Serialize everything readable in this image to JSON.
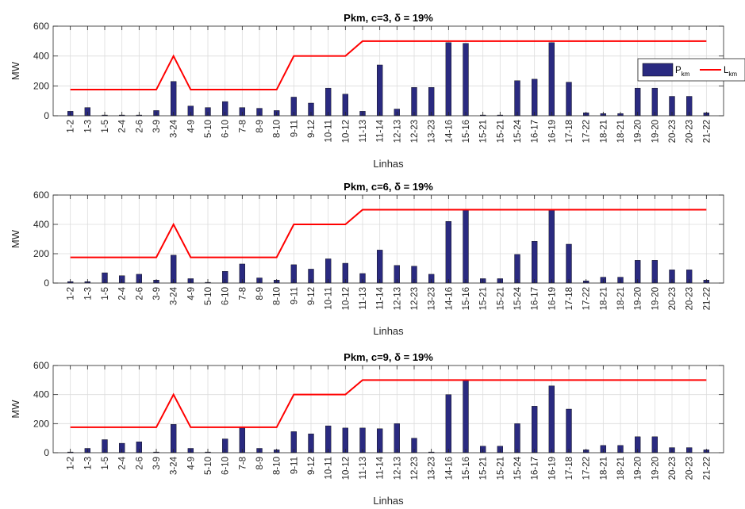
{
  "chart_data": [
    {
      "type": "bar",
      "title": "Pkm, c=3, δ = 19%",
      "xlabel": "Linhas",
      "ylabel": "MW",
      "ylim": [
        0,
        600
      ],
      "yticks": [
        0,
        200,
        400,
        600
      ],
      "grid": true,
      "legend": {
        "placement": "right",
        "shown": true
      },
      "categories": [
        "1-2",
        "1-3",
        "1-5",
        "2-4",
        "2-6",
        "3-9",
        "3-24",
        "4-9",
        "5-10",
        "6-10",
        "7-8",
        "8-9",
        "8-10",
        "9-11",
        "9-12",
        "10-11",
        "10-12",
        "11-13",
        "11-14",
        "12-13",
        "12-23",
        "13-23",
        "14-16",
        "15-16",
        "15-21",
        "15-21",
        "15-24",
        "16-17",
        "16-19",
        "17-18",
        "17-22",
        "18-21",
        "18-21",
        "19-20",
        "19-20",
        "20-23",
        "20-23",
        "21-22"
      ],
      "series": [
        {
          "name": "P_km",
          "kind": "bar",
          "color": "#2a2a80",
          "values": [
            30,
            55,
            5,
            5,
            5,
            35,
            230,
            65,
            55,
            95,
            55,
            50,
            35,
            125,
            85,
            185,
            145,
            30,
            340,
            45,
            190,
            190,
            490,
            485,
            5,
            5,
            235,
            245,
            490,
            225,
            20,
            15,
            15,
            185,
            185,
            130,
            130,
            20
          ]
        },
        {
          "name": "L_km",
          "kind": "line",
          "color": "#ff0000",
          "values": [
            175,
            175,
            175,
            175,
            175,
            175,
            400,
            175,
            175,
            175,
            175,
            175,
            175,
            400,
            400,
            400,
            400,
            500,
            500,
            500,
            500,
            500,
            500,
            500,
            500,
            500,
            500,
            500,
            500,
            500,
            500,
            500,
            500,
            500,
            500,
            500,
            500,
            500
          ]
        }
      ]
    },
    {
      "type": "bar",
      "title": "Pkm, c=6, δ = 19%",
      "xlabel": "Linhas",
      "ylabel": "MW",
      "ylim": [
        0,
        600
      ],
      "yticks": [
        0,
        200,
        400,
        600
      ],
      "grid": true,
      "legend": {
        "shown": false
      },
      "categories": [
        "1-2",
        "1-3",
        "1-5",
        "2-4",
        "2-6",
        "3-9",
        "3-24",
        "4-9",
        "5-10",
        "6-10",
        "7-8",
        "8-9",
        "8-10",
        "9-11",
        "9-12",
        "10-11",
        "10-12",
        "11-13",
        "11-14",
        "12-13",
        "12-23",
        "13-23",
        "14-16",
        "15-16",
        "15-21",
        "15-21",
        "15-24",
        "16-17",
        "16-19",
        "17-18",
        "17-22",
        "18-21",
        "18-21",
        "19-20",
        "19-20",
        "20-23",
        "20-23",
        "21-22"
      ],
      "series": [
        {
          "name": "P_km",
          "kind": "bar",
          "color": "#2a2a80",
          "values": [
            10,
            10,
            70,
            50,
            60,
            20,
            190,
            30,
            5,
            80,
            130,
            35,
            20,
            125,
            95,
            165,
            135,
            65,
            225,
            120,
            115,
            60,
            420,
            500,
            30,
            30,
            195,
            285,
            500,
            265,
            15,
            40,
            40,
            155,
            155,
            90,
            90,
            20
          ]
        },
        {
          "name": "L_km",
          "kind": "line",
          "color": "#ff0000",
          "values": [
            175,
            175,
            175,
            175,
            175,
            175,
            400,
            175,
            175,
            175,
            175,
            175,
            175,
            400,
            400,
            400,
            400,
            500,
            500,
            500,
            500,
            500,
            500,
            500,
            500,
            500,
            500,
            500,
            500,
            500,
            500,
            500,
            500,
            500,
            500,
            500,
            500,
            500
          ]
        }
      ]
    },
    {
      "type": "bar",
      "title": "Pkm, c=9, δ = 19%",
      "xlabel": "Linhas",
      "ylabel": "MW",
      "ylim": [
        0,
        600
      ],
      "yticks": [
        0,
        200,
        400,
        600
      ],
      "grid": true,
      "legend": {
        "shown": false
      },
      "categories": [
        "1-2",
        "1-3",
        "1-5",
        "2-4",
        "2-6",
        "3-9",
        "3-24",
        "4-9",
        "5-10",
        "6-10",
        "7-8",
        "8-9",
        "8-10",
        "9-11",
        "9-12",
        "10-11",
        "10-12",
        "11-13",
        "11-14",
        "12-13",
        "12-23",
        "13-23",
        "14-16",
        "15-16",
        "15-21",
        "15-21",
        "15-24",
        "16-17",
        "16-19",
        "17-18",
        "17-22",
        "18-21",
        "18-21",
        "19-20",
        "19-20",
        "20-23",
        "20-23",
        "21-22"
      ],
      "series": [
        {
          "name": "P_km",
          "kind": "bar",
          "color": "#2a2a80",
          "values": [
            5,
            30,
            90,
            65,
            75,
            5,
            195,
            30,
            5,
            95,
            175,
            30,
            20,
            145,
            130,
            185,
            170,
            170,
            165,
            200,
            100,
            5,
            400,
            500,
            45,
            45,
            200,
            320,
            460,
            300,
            20,
            50,
            50,
            110,
            110,
            35,
            35,
            20
          ]
        },
        {
          "name": "L_km",
          "kind": "line",
          "color": "#ff0000",
          "values": [
            175,
            175,
            175,
            175,
            175,
            175,
            400,
            175,
            175,
            175,
            175,
            175,
            175,
            400,
            400,
            400,
            400,
            500,
            500,
            500,
            500,
            500,
            500,
            500,
            500,
            500,
            500,
            500,
            500,
            500,
            500,
            500,
            500,
            500,
            500,
            500,
            500,
            500
          ]
        }
      ]
    }
  ],
  "legend_labels": {
    "bar_main": "P",
    "bar_sub": "km",
    "line_main": "L",
    "line_sub": "km"
  }
}
